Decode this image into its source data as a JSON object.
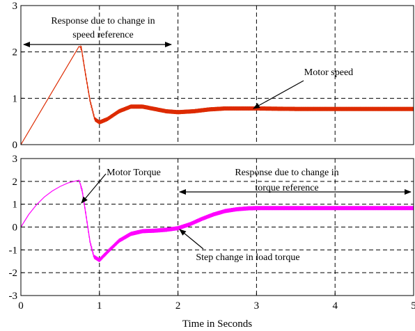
{
  "chart_data": [
    {
      "type": "line",
      "xlim": [
        0,
        5
      ],
      "ylim": [
        0,
        3
      ],
      "xticks": [],
      "yticks": [
        0,
        1,
        2,
        3
      ],
      "grid": true,
      "series": [
        {
          "name": "Motor speed",
          "color": "#dd2a00",
          "x": [
            0,
            0.74,
            0.77,
            0.82,
            0.88,
            0.94,
            1.0,
            1.1,
            1.25,
            1.4,
            1.55,
            1.7,
            1.85,
            2.0,
            2.2,
            2.4,
            2.6,
            2.8,
            3.0,
            3.5,
            4.0,
            5.0
          ],
          "y": [
            0,
            2.12,
            2.08,
            1.55,
            0.95,
            0.55,
            0.48,
            0.55,
            0.72,
            0.82,
            0.82,
            0.77,
            0.72,
            0.7,
            0.72,
            0.76,
            0.78,
            0.78,
            0.78,
            0.77,
            0.77,
            0.77
          ]
        }
      ],
      "annotations": [
        {
          "text": "Response due to change in",
          "color": "#1a1ae0"
        },
        {
          "text": "speed reference",
          "color": "#1a1ae0"
        },
        {
          "text": "Motor speed",
          "color": "#dd2a00"
        }
      ]
    },
    {
      "type": "line",
      "xlim": [
        0,
        5
      ],
      "ylim": [
        -3,
        3
      ],
      "xticks": [
        0,
        1,
        2,
        3,
        4,
        5
      ],
      "yticks": [
        -3,
        -2,
        -1,
        0,
        1,
        2,
        3
      ],
      "grid": true,
      "xlabel": "Time in Seconds",
      "series": [
        {
          "name": "Motor Torque",
          "color": "#ff00ff",
          "x": [
            0,
            0.1,
            0.2,
            0.3,
            0.4,
            0.5,
            0.6,
            0.7,
            0.74,
            0.78,
            0.83,
            0.88,
            0.93,
            1.0,
            1.1,
            1.25,
            1.4,
            1.55,
            1.7,
            1.85,
            2.0,
            2.15,
            2.3,
            2.45,
            2.6,
            2.75,
            2.9,
            3.0,
            3.5,
            4.0,
            5.0
          ],
          "y": [
            0,
            0.55,
            0.98,
            1.32,
            1.58,
            1.78,
            1.93,
            2.02,
            2.05,
            1.6,
            0.5,
            -0.65,
            -1.3,
            -1.45,
            -1.1,
            -0.6,
            -0.3,
            -0.18,
            -0.16,
            -0.12,
            -0.05,
            0.12,
            0.35,
            0.55,
            0.7,
            0.78,
            0.82,
            0.83,
            0.83,
            0.83,
            0.83
          ]
        }
      ],
      "annotations": [
        {
          "text": "Motor Torque",
          "color": "#ff00ff"
        },
        {
          "text": "Response due to change in",
          "color": "#1a1ae0"
        },
        {
          "text": "torque reference",
          "color": "#1a1ae0"
        },
        {
          "text": "Step change in load torque",
          "color": "#000000"
        }
      ]
    }
  ]
}
